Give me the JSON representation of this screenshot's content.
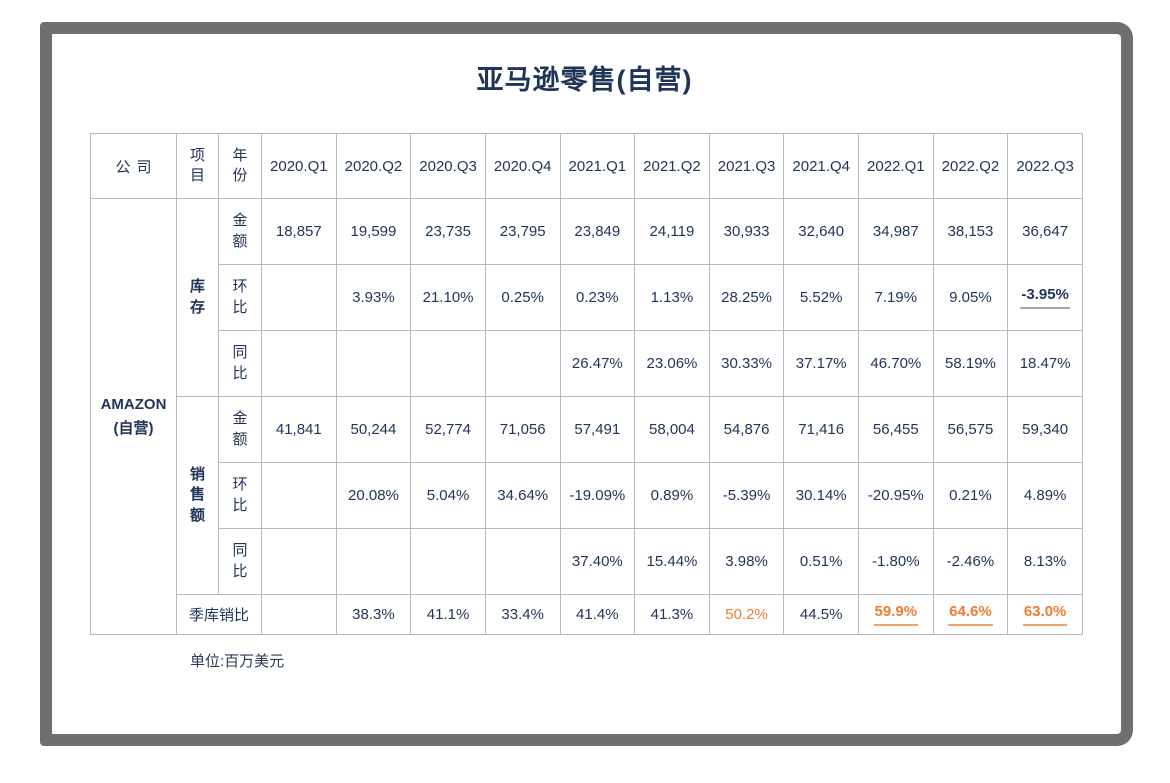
{
  "title": "亚马逊零售(自营)",
  "unit_note": "单位:百万美元",
  "colors": {
    "navy_text": "#1F3456",
    "orange_accent": "#ED7D31",
    "orange_underline": "#F2A470",
    "gray_underline": "#A6A6A6",
    "table_border": "#B3BAC6",
    "frame_gray": "#6F6F6F"
  },
  "table": {
    "headers": {
      "company": "公司",
      "item": "项目",
      "year": "年份"
    },
    "quarters": [
      "2020.Q1",
      "2020.Q2",
      "2020.Q3",
      "2020.Q4",
      "2021.Q1",
      "2021.Q2",
      "2021.Q3",
      "2021.Q4",
      "2022.Q1",
      "2022.Q2",
      "2022.Q3"
    ],
    "company_line1": "AMAZON",
    "company_line2": "(自营)",
    "groups": [
      {
        "name": "库存",
        "rows": [
          {
            "label": "金额",
            "values": [
              "18,857",
              "19,599",
              "23,735",
              "23,795",
              "23,849",
              "24,119",
              "30,933",
              "32,640",
              "34,987",
              "38,153",
              "36,647"
            ]
          },
          {
            "label": "环比",
            "values": [
              "",
              "3.93%",
              "21.10%",
              "0.25%",
              "0.23%",
              "1.13%",
              "28.25%",
              "5.52%",
              "7.19%",
              "9.05%",
              "-3.95%"
            ]
          },
          {
            "label": "同比",
            "values": [
              "",
              "",
              "",
              "",
              "26.47%",
              "23.06%",
              "30.33%",
              "37.17%",
              "46.70%",
              "58.19%",
              "18.47%"
            ]
          }
        ]
      },
      {
        "name": "销售额",
        "rows": [
          {
            "label": "金额",
            "values": [
              "41,841",
              "50,244",
              "52,774",
              "71,056",
              "57,491",
              "58,004",
              "54,876",
              "71,416",
              "56,455",
              "56,575",
              "59,340"
            ]
          },
          {
            "label": "环比",
            "values": [
              "",
              "20.08%",
              "5.04%",
              "34.64%",
              "-19.09%",
              "0.89%",
              "-5.39%",
              "30.14%",
              "-20.95%",
              "0.21%",
              "4.89%"
            ]
          },
          {
            "label": "同比",
            "values": [
              "",
              "",
              "",
              "",
              "37.40%",
              "15.44%",
              "3.98%",
              "0.51%",
              "-1.80%",
              "-2.46%",
              "8.13%"
            ]
          }
        ]
      }
    ],
    "ratio": {
      "label": "季库销比",
      "values": [
        "",
        "38.3%",
        "41.1%",
        "33.4%",
        "41.4%",
        "41.3%",
        "50.2%",
        "44.5%",
        "59.9%",
        "64.6%",
        "63.0%"
      ]
    }
  }
}
